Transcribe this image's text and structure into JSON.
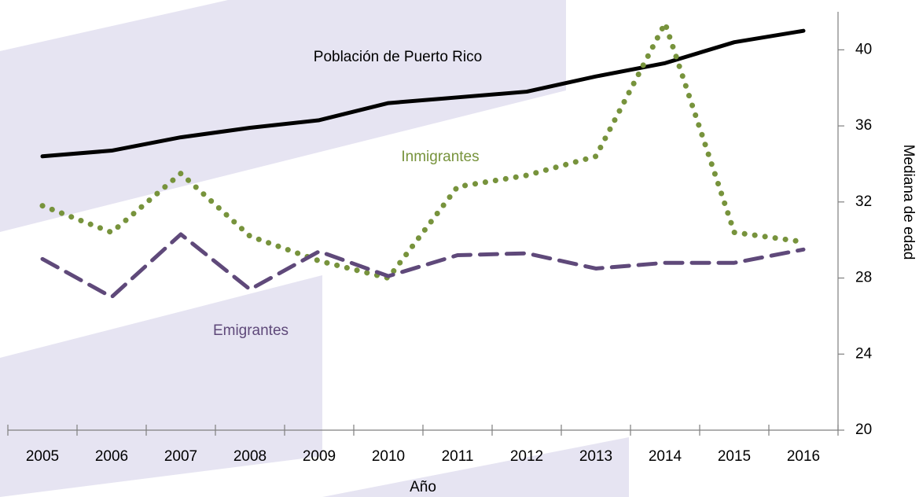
{
  "chart_data": {
    "type": "line",
    "x_label": "Año",
    "y_label": "Mediana de edad",
    "categories": [
      "2005",
      "2006",
      "2007",
      "2008",
      "2009",
      "2010",
      "2011",
      "2012",
      "2013",
      "2014",
      "2015",
      "2016"
    ],
    "series": [
      {
        "name": "Población de Puerto Rico",
        "color": "#000000",
        "dash": "solid",
        "values": [
          34.4,
          34.7,
          35.4,
          35.9,
          36.3,
          37.2,
          37.5,
          37.8,
          38.6,
          39.3,
          40.4,
          41.0
        ]
      },
      {
        "name": "Inmigrantes",
        "color": "#77933c",
        "dash": "dotted",
        "values": [
          31.8,
          30.4,
          33.5,
          30.2,
          28.9,
          28.0,
          32.8,
          33.4,
          34.4,
          41.4,
          30.4,
          29.9
        ]
      },
      {
        "name": "Emigrantes",
        "color": "#5f497a",
        "dash": "dashed",
        "values": [
          29.0,
          27.0,
          30.3,
          27.4,
          29.4,
          28.1,
          29.2,
          29.3,
          28.5,
          28.8,
          28.8,
          29.5
        ]
      }
    ],
    "ylim": [
      20,
      42
    ],
    "yticks": [
      20,
      24,
      28,
      32,
      36,
      40
    ],
    "y_axis_side": "right"
  }
}
